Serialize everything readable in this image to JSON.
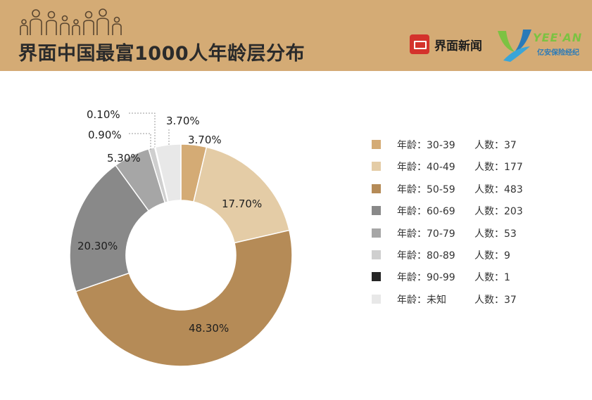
{
  "header": {
    "title": "界面中国最富1000人年龄层分布",
    "brand_main": "界面新闻",
    "brand_second_title": "YEE'AN",
    "brand_second_subtitle": "亿安保险经纪",
    "background_color": "#d4ab75"
  },
  "chart_data": {
    "type": "pie",
    "donut": true,
    "title": "界面中国最富1000人年龄层分布",
    "slices": [
      {
        "label": "30-39",
        "value": 3.7,
        "count": 37,
        "color": "#d4ab75",
        "label_text": "3.70%"
      },
      {
        "label": "40-49",
        "value": 17.7,
        "count": 177,
        "color": "#e4cca6",
        "label_text": "17.70%"
      },
      {
        "label": "50-59",
        "value": 48.3,
        "count": 483,
        "color": "#b58b57",
        "label_text": "48.30%"
      },
      {
        "label": "60-69",
        "value": 20.3,
        "count": 203,
        "color": "#898989",
        "label_text": "20.30%"
      },
      {
        "label": "70-79",
        "value": 5.3,
        "count": 53,
        "color": "#a6a6a6",
        "label_text": "5.30%"
      },
      {
        "label": "80-89",
        "value": 0.9,
        "count": 9,
        "color": "#cfcfcf",
        "label_text": "0.90%"
      },
      {
        "label": "90-99",
        "value": 0.1,
        "count": 1,
        "color": "#262626",
        "label_text": "0.10%"
      },
      {
        "label": "未知",
        "value": 3.7,
        "count": 37,
        "color": "#e8e8e8",
        "label_text": "3.70%"
      }
    ],
    "legend": {
      "position": "right",
      "age_prefix": "年龄：",
      "count_prefix": "人数：",
      "entries": [
        {
          "age": "年龄：30-39",
          "count": "人数：37"
        },
        {
          "age": "年龄：40-49",
          "count": "人数：177"
        },
        {
          "age": "年龄：50-59",
          "count": "人数：483"
        },
        {
          "age": "年龄：60-69",
          "count": "人数：203"
        },
        {
          "age": "年龄：70-79",
          "count": "人数：53"
        },
        {
          "age": "年龄：80-89",
          "count": "人数：9"
        },
        {
          "age": "年龄：90-99",
          "count": "人数：1"
        },
        {
          "age": "年龄：未知",
          "count": "人数：37"
        }
      ]
    }
  }
}
